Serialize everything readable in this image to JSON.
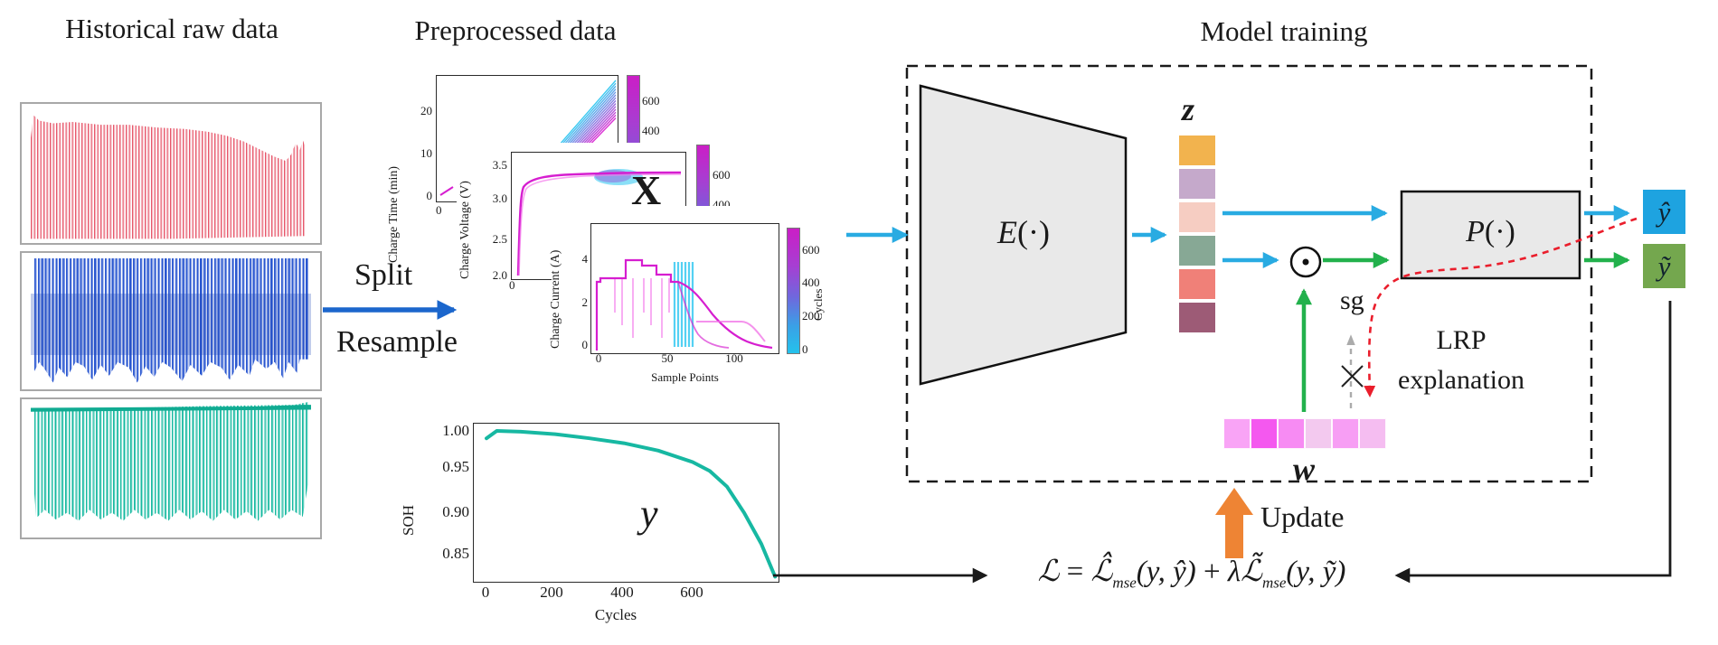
{
  "titles": {
    "raw": "Historical raw data",
    "preprocessed": "Preprocessed data",
    "model": "Model training"
  },
  "flow": {
    "split": "Split",
    "resample": "Resample",
    "update": "Update",
    "sg": "sg",
    "times": "×",
    "lrp_line1": "LRP",
    "lrp_line2": "explanation"
  },
  "labels": {
    "x_matrix": "X",
    "y_target": "y",
    "z_vector": "z",
    "w_vector": "w",
    "encoder": "E",
    "predictor": "P",
    "paren_dot": "(·)",
    "y_hat": "ŷ",
    "y_tilde": "ỹ"
  },
  "loss": {
    "L": "ℒ",
    "eq": "=",
    "L_hat": "ℒ̂",
    "sub1": "mse",
    "args1": "(y, ŷ)",
    "plus": "+",
    "lambda": "λ",
    "L_tilde": "ℒ̃",
    "sub2": "mse",
    "args2": "(y, ỹ)"
  },
  "z_cells": [
    "#f2b34e",
    "#c5a9cb",
    "#f6cdc2",
    "#87a895",
    "#f08078",
    "#9d5b76"
  ],
  "w_cells": [
    "#f9a4f6",
    "#f458ef",
    "#f78bf3",
    "#f3c9ef",
    "#f79ef4",
    "#f5bdf1"
  ],
  "colors": {
    "cyan_arrow": "#29abe2",
    "green_arrow": "#22b14c",
    "blue_arrow": "#1b66cc",
    "orange": "#ee8434",
    "red_dashed": "#ea1e2c",
    "gray_dashed": "#aaaaaa",
    "black": "#1a1a1a",
    "box_fill": "#e9e9e9",
    "yhat_fill": "#1ea3e0",
    "ytilde_fill": "#74a74e",
    "raw_red": "#e7586c",
    "raw_blue": "#2a57d0",
    "raw_teal": "#16b9a0",
    "soh_teal": "#17b8a2",
    "line_magenta": "#d61ed0",
    "line_cyan": "#29c5f0"
  },
  "chart_data": [
    {
      "id": "charge_time",
      "type": "line",
      "ylabel": "Charge Time (min)",
      "yticks": [
        "0",
        "10",
        "20"
      ],
      "xticks": [
        "0"
      ],
      "colorbar": {
        "ticks": [
          "400",
          "600"
        ],
        "label": "Cycles"
      },
      "desc": "Charge time vs sample points for every cycle; curves rise linearly, colored cyan (early cycles) to magenta (late cycles)",
      "ylim": [
        0,
        25
      ]
    },
    {
      "id": "charge_voltage",
      "type": "line",
      "ylabel": "Charge Voltage (V)",
      "yticks": [
        "2.0",
        "2.5",
        "3.0",
        "3.5"
      ],
      "xticks": [
        "0"
      ],
      "annotation": "X",
      "colorbar": {
        "ticks": [
          "400",
          "600"
        ],
        "label": "Cycles"
      },
      "desc": "Charge voltage rises steeply from ~2.0 V to ~3.4 V then plateaus near 3.5-3.6 V; all cycles overlap",
      "ylim": [
        2.0,
        3.7
      ]
    },
    {
      "id": "charge_current",
      "type": "line",
      "ylabel": "Charge Current (A)",
      "yticks": [
        "0",
        "2",
        "4"
      ],
      "xticks": [
        "0",
        "50",
        "100"
      ],
      "xlabel": "Sample Points",
      "colorbar": {
        "ticks": [
          "0",
          "200",
          "400",
          "600"
        ],
        "label": "Cycles"
      },
      "desc": "Stepped constant-current profile ~4.5-5 A decreasing in stages then tapering to 0 A by ~130 sample points; colored by cycle number",
      "ylim": [
        0,
        5.5
      ]
    },
    {
      "id": "soh",
      "type": "line",
      "ylabel": "SOH",
      "yticks": [
        "0.85",
        "0.90",
        "0.95",
        "1.00"
      ],
      "xticks": [
        "0",
        "200",
        "400",
        "600"
      ],
      "xlabel": "Cycles",
      "annotation": "y",
      "series": [
        {
          "name": "SOH",
          "color": "#17b8a2"
        }
      ],
      "points": [
        [
          0,
          0.991
        ],
        [
          30,
          1.0
        ],
        [
          100,
          0.999
        ],
        [
          200,
          0.996
        ],
        [
          300,
          0.991
        ],
        [
          400,
          0.985
        ],
        [
          500,
          0.976
        ],
        [
          600,
          0.962
        ],
        [
          650,
          0.951
        ],
        [
          700,
          0.932
        ],
        [
          750,
          0.9
        ],
        [
          800,
          0.862
        ],
        [
          840,
          0.822
        ]
      ],
      "ylim": [
        0.82,
        1.01
      ],
      "xlim": [
        0,
        890
      ]
    }
  ]
}
